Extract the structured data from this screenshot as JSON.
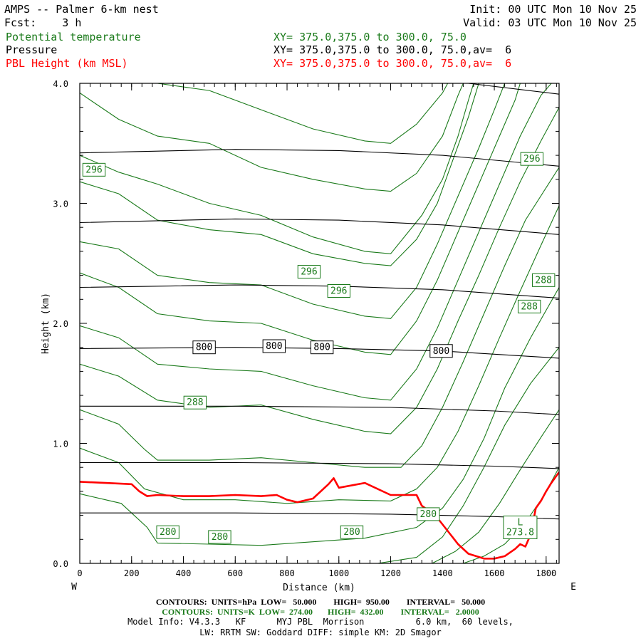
{
  "header": {
    "title": "AMPS -- Palmer 6-km nest",
    "init": "Init: 00 UTC Mon 10 Nov 25",
    "fcst": "Fcst:    3 h",
    "valid": "Valid: 03 UTC Mon 10 Nov 25",
    "field1": "Potential temperature",
    "field1_xy": "XY= 375.0,375.0 to 300.0, 75.0",
    "field2": "Pressure",
    "field2_xy": "XY= 375.0,375.0 to 300.0, 75.0,av=  6",
    "field3": "PBL Height (km MSL)",
    "field3_xy": "XY= 375.0,375.0 to 300.0, 75.0,av=  6"
  },
  "colors": {
    "theta": "#1a7a1a",
    "pbl": "#ff0000",
    "pressure": "#000000"
  },
  "chart_data": {
    "type": "line",
    "title": "AMPS -- Palmer 6-km nest cross-section",
    "xlabel": "Distance (km)",
    "ylabel": "Height (km)",
    "xlim": [
      0,
      1850
    ],
    "ylim": [
      0,
      4.0
    ],
    "x_ticks": [
      0,
      200,
      400,
      600,
      800,
      1000,
      1200,
      1400,
      1600,
      1800
    ],
    "x_tick_labels": [
      "0",
      "200",
      "400",
      "600",
      "800",
      "1000",
      "1200",
      "1400",
      "1600",
      "1800"
    ],
    "y_ticks": [
      0,
      1,
      2,
      3,
      4
    ],
    "y_tick_labels": [
      "0.0",
      "1.0",
      "2.0",
      "3.0",
      "4.0"
    ],
    "west_label": "W",
    "east_label": "E",
    "pressure_contours": [
      {
        "level": 950,
        "points": [
          [
            0,
            0.42
          ],
          [
            600,
            0.42
          ],
          [
            1200,
            0.41
          ],
          [
            1600,
            0.39
          ],
          [
            1850,
            0.37
          ]
        ]
      },
      {
        "level": 900,
        "points": [
          [
            0,
            0.84
          ],
          [
            600,
            0.84
          ],
          [
            1200,
            0.83
          ],
          [
            1600,
            0.81
          ],
          [
            1850,
            0.79
          ]
        ]
      },
      {
        "level": 850,
        "points": [
          [
            0,
            1.31
          ],
          [
            600,
            1.31
          ],
          [
            1200,
            1.3
          ],
          [
            1600,
            1.27
          ],
          [
            1850,
            1.24
          ]
        ]
      },
      {
        "level": 800,
        "points": [
          [
            0,
            1.79
          ],
          [
            600,
            1.8
          ],
          [
            1000,
            1.79
          ],
          [
            1400,
            1.77
          ],
          [
            1850,
            1.71
          ]
        ]
      },
      {
        "level": 750,
        "points": [
          [
            0,
            2.3
          ],
          [
            600,
            2.32
          ],
          [
            1000,
            2.31
          ],
          [
            1400,
            2.28
          ],
          [
            1850,
            2.21
          ]
        ]
      },
      {
        "level": 700,
        "points": [
          [
            0,
            2.84
          ],
          [
            600,
            2.87
          ],
          [
            1000,
            2.86
          ],
          [
            1400,
            2.82
          ],
          [
            1850,
            2.74
          ]
        ]
      },
      {
        "level": 650,
        "points": [
          [
            0,
            3.42
          ],
          [
            600,
            3.45
          ],
          [
            1000,
            3.44
          ],
          [
            1400,
            3.4
          ],
          [
            1850,
            3.31
          ]
        ]
      },
      {
        "level": 600,
        "points": [
          [
            1500,
            4.0
          ],
          [
            1850,
            3.91
          ]
        ]
      }
    ],
    "pressure_labels": [
      {
        "text": "800",
        "x": 480,
        "y": 1.8
      },
      {
        "text": "800",
        "x": 750,
        "y": 1.81
      },
      {
        "text": "800",
        "x": 935,
        "y": 1.8
      },
      {
        "text": "800",
        "x": 1395,
        "y": 1.77
      }
    ],
    "theta_contours": [
      {
        "level": 274,
        "points": [
          [
            1480,
            0.0
          ],
          [
            1560,
            0.06
          ],
          [
            1640,
            0.16
          ],
          [
            1720,
            0.34
          ],
          [
            1790,
            0.56
          ],
          [
            1850,
            0.8
          ]
        ]
      },
      {
        "level": 276,
        "points": [
          [
            1360,
            0.0
          ],
          [
            1450,
            0.1
          ],
          [
            1540,
            0.26
          ],
          [
            1620,
            0.5
          ],
          [
            1700,
            0.78
          ],
          [
            1780,
            1.05
          ],
          [
            1850,
            1.28
          ]
        ]
      },
      {
        "level": 278,
        "points": [
          [
            1150,
            0.0
          ],
          [
            1300,
            0.05
          ],
          [
            1400,
            0.22
          ],
          [
            1480,
            0.48
          ],
          [
            1560,
            0.8
          ],
          [
            1640,
            1.15
          ],
          [
            1740,
            1.5
          ],
          [
            1850,
            1.8
          ]
        ]
      },
      {
        "level": 280,
        "points": [
          [
            0,
            0.58
          ],
          [
            160,
            0.5
          ],
          [
            260,
            0.3
          ],
          [
            300,
            0.17
          ],
          [
            500,
            0.16
          ],
          [
            700,
            0.15
          ],
          [
            900,
            0.18
          ],
          [
            1100,
            0.21
          ],
          [
            1300,
            0.3
          ],
          [
            1400,
            0.46
          ],
          [
            1480,
            0.7
          ],
          [
            1560,
            1.04
          ],
          [
            1640,
            1.46
          ],
          [
            1740,
            1.88
          ],
          [
            1850,
            2.3
          ]
        ]
      },
      {
        "level": 282,
        "points": [
          [
            0,
            0.96
          ],
          [
            150,
            0.84
          ],
          [
            250,
            0.62
          ],
          [
            400,
            0.53
          ],
          [
            600,
            0.53
          ],
          [
            800,
            0.5
          ],
          [
            1000,
            0.53
          ],
          [
            1200,
            0.52
          ],
          [
            1300,
            0.62
          ],
          [
            1380,
            0.8
          ],
          [
            1460,
            1.1
          ],
          [
            1540,
            1.48
          ],
          [
            1620,
            1.88
          ],
          [
            1700,
            2.27
          ],
          [
            1780,
            2.65
          ],
          [
            1850,
            2.98
          ]
        ]
      },
      {
        "level": 284,
        "points": [
          [
            0,
            1.28
          ],
          [
            150,
            1.16
          ],
          [
            250,
            0.95
          ],
          [
            300,
            0.86
          ],
          [
            500,
            0.86
          ],
          [
            700,
            0.88
          ],
          [
            900,
            0.84
          ],
          [
            1100,
            0.8
          ],
          [
            1240,
            0.8
          ],
          [
            1320,
            0.98
          ],
          [
            1400,
            1.3
          ],
          [
            1480,
            1.68
          ],
          [
            1560,
            2.08
          ],
          [
            1640,
            2.48
          ],
          [
            1720,
            2.86
          ],
          [
            1850,
            3.3
          ]
        ]
      },
      {
        "level": 286,
        "points": [
          [
            0,
            1.66
          ],
          [
            150,
            1.56
          ],
          [
            300,
            1.36
          ],
          [
            500,
            1.3
          ],
          [
            700,
            1.32
          ],
          [
            900,
            1.2
          ],
          [
            1100,
            1.1
          ],
          [
            1200,
            1.08
          ],
          [
            1300,
            1.3
          ],
          [
            1380,
            1.62
          ],
          [
            1460,
            2.02
          ],
          [
            1540,
            2.4
          ],
          [
            1620,
            2.8
          ],
          [
            1700,
            3.18
          ],
          [
            1780,
            3.52
          ],
          [
            1850,
            3.8
          ]
        ]
      },
      {
        "level": 288,
        "points": [
          [
            0,
            1.98
          ],
          [
            150,
            1.88
          ],
          [
            300,
            1.66
          ],
          [
            500,
            1.62
          ],
          [
            700,
            1.6
          ],
          [
            900,
            1.48
          ],
          [
            1100,
            1.38
          ],
          [
            1200,
            1.36
          ],
          [
            1300,
            1.62
          ],
          [
            1380,
            1.96
          ],
          [
            1460,
            2.36
          ],
          [
            1540,
            2.76
          ],
          [
            1620,
            3.16
          ],
          [
            1700,
            3.56
          ],
          [
            1780,
            3.9
          ],
          [
            1820,
            4.0
          ]
        ]
      },
      {
        "level": 290,
        "points": [
          [
            0,
            2.42
          ],
          [
            150,
            2.3
          ],
          [
            300,
            2.08
          ],
          [
            500,
            2.02
          ],
          [
            700,
            2.0
          ],
          [
            900,
            1.86
          ],
          [
            1100,
            1.76
          ],
          [
            1200,
            1.74
          ],
          [
            1300,
            2.02
          ],
          [
            1380,
            2.36
          ],
          [
            1460,
            2.76
          ],
          [
            1540,
            3.16
          ],
          [
            1620,
            3.56
          ],
          [
            1680,
            3.86
          ],
          [
            1700,
            4.0
          ]
        ]
      },
      {
        "level": 292,
        "points": [
          [
            0,
            2.68
          ],
          [
            150,
            2.62
          ],
          [
            300,
            2.4
          ],
          [
            500,
            2.34
          ],
          [
            700,
            2.32
          ],
          [
            900,
            2.16
          ],
          [
            1100,
            2.06
          ],
          [
            1200,
            2.04
          ],
          [
            1300,
            2.3
          ],
          [
            1380,
            2.66
          ],
          [
            1460,
            3.06
          ],
          [
            1540,
            3.46
          ],
          [
            1600,
            3.78
          ],
          [
            1640,
            4.0
          ]
        ]
      },
      {
        "level": 294,
        "points": [
          [
            0,
            3.18
          ],
          [
            150,
            3.08
          ],
          [
            300,
            2.86
          ],
          [
            500,
            2.78
          ],
          [
            700,
            2.74
          ],
          [
            900,
            2.58
          ],
          [
            1100,
            2.5
          ],
          [
            1200,
            2.48
          ],
          [
            1300,
            2.7
          ],
          [
            1380,
            3.0
          ],
          [
            1440,
            3.36
          ],
          [
            1500,
            3.72
          ],
          [
            1540,
            4.0
          ]
        ]
      },
      {
        "level": 296,
        "points": [
          [
            0,
            3.4
          ],
          [
            150,
            3.26
          ],
          [
            300,
            3.16
          ],
          [
            500,
            3.0
          ],
          [
            700,
            2.9
          ],
          [
            900,
            2.72
          ],
          [
            1100,
            2.6
          ],
          [
            1200,
            2.58
          ],
          [
            1320,
            2.9
          ],
          [
            1400,
            3.2
          ],
          [
            1460,
            3.56
          ],
          [
            1500,
            3.86
          ],
          [
            1520,
            4.0
          ]
        ]
      },
      {
        "level": 298,
        "points": [
          [
            0,
            3.92
          ],
          [
            150,
            3.7
          ],
          [
            300,
            3.56
          ],
          [
            500,
            3.5
          ],
          [
            700,
            3.3
          ],
          [
            900,
            3.2
          ],
          [
            1100,
            3.12
          ],
          [
            1200,
            3.1
          ],
          [
            1300,
            3.25
          ],
          [
            1400,
            3.56
          ],
          [
            1460,
            3.9
          ],
          [
            1480,
            4.0
          ]
        ]
      },
      {
        "level": 300,
        "points": [
          [
            300,
            4.0
          ],
          [
            500,
            3.94
          ],
          [
            700,
            3.78
          ],
          [
            900,
            3.62
          ],
          [
            1100,
            3.52
          ],
          [
            1200,
            3.5
          ],
          [
            1300,
            3.66
          ],
          [
            1400,
            3.92
          ],
          [
            1420,
            4.0
          ]
        ]
      }
    ],
    "theta_labels": [
      {
        "text": "296",
        "x": 55,
        "y": 3.28
      },
      {
        "text": "296",
        "x": 885,
        "y": 2.43
      },
      {
        "text": "296",
        "x": 1000,
        "y": 2.27
      },
      {
        "text": "296",
        "x": 1745,
        "y": 3.37
      },
      {
        "text": "288",
        "x": 445,
        "y": 1.34
      },
      {
        "text": "288",
        "x": 1790,
        "y": 2.36
      },
      {
        "text": "288",
        "x": 1735,
        "y": 2.14
      },
      {
        "text": "280",
        "x": 340,
        "y": 0.26
      },
      {
        "text": "280",
        "x": 540,
        "y": 0.22
      },
      {
        "text": "280",
        "x": 1050,
        "y": 0.26
      },
      {
        "text": "280",
        "x": 1345,
        "y": 0.41
      },
      {
        "text": "L\n273.8",
        "x": 1700,
        "y": 0.3
      }
    ],
    "pbl_height": {
      "x": [
        0,
        100,
        200,
        230,
        260,
        300,
        400,
        500,
        600,
        700,
        760,
        800,
        840,
        900,
        960,
        980,
        1000,
        1100,
        1200,
        1300,
        1320,
        1360,
        1380,
        1420,
        1460,
        1500,
        1560,
        1600,
        1640,
        1680,
        1700,
        1720,
        1740,
        1760,
        1780,
        1800,
        1820,
        1850
      ],
      "y": [
        0.68,
        0.67,
        0.66,
        0.6,
        0.56,
        0.57,
        0.56,
        0.56,
        0.57,
        0.56,
        0.57,
        0.53,
        0.51,
        0.54,
        0.66,
        0.71,
        0.63,
        0.67,
        0.57,
        0.57,
        0.48,
        0.42,
        0.38,
        0.27,
        0.16,
        0.08,
        0.04,
        0.04,
        0.06,
        0.12,
        0.16,
        0.14,
        0.24,
        0.46,
        0.52,
        0.6,
        0.67,
        0.76
      ]
    }
  },
  "footer": {
    "contours_pressure": "CONTOURS:  UNITS=hPa  LOW=   50.000        HIGH=  950.00        INTERVAL=   50.000",
    "contours_theta": "CONTOURS:  UNITS=K  LOW=  274.00       HIGH=  432.00        INTERVAL=   2.0000",
    "model_info": "Model Info: V4.3.3   KF      MYJ PBL  Morrison          6.0 km,  60 levels,",
    "model_info2": "LW: RRTM SW: Goddard DIFF: simple KM: 2D Smagor"
  }
}
